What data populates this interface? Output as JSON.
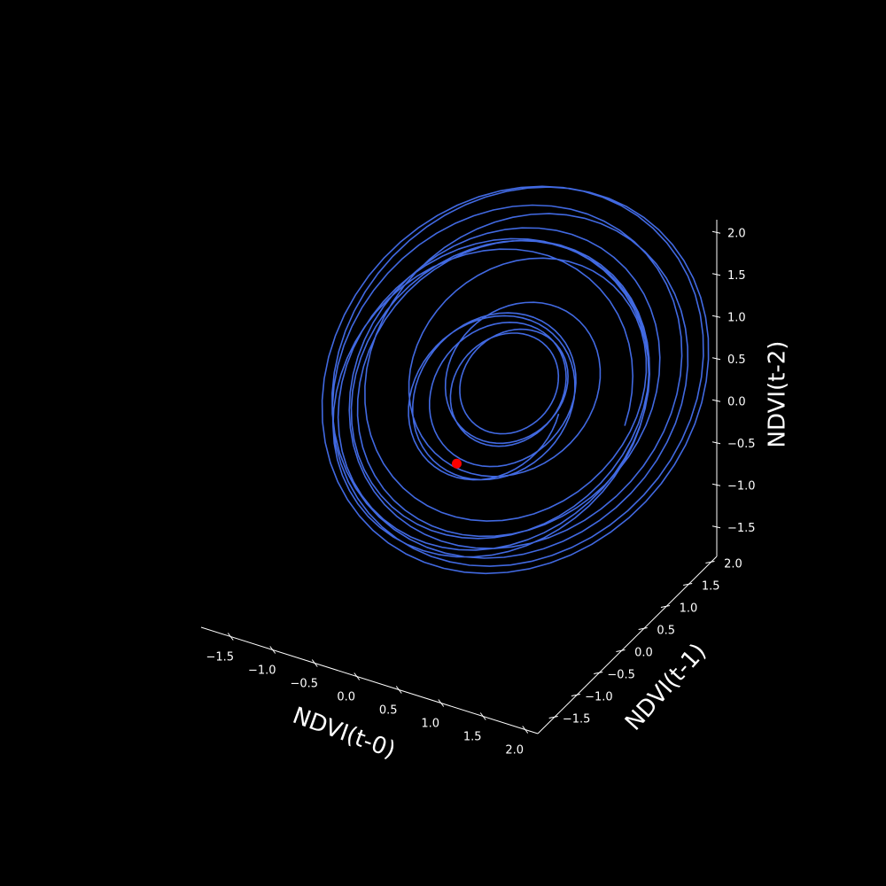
{
  "chart_data": {
    "type": "line",
    "projection": "3d",
    "xlabel": "NDVI(t-0)",
    "ylabel": "NDVI(t-1)",
    "zlabel": "NDVI(t-2)",
    "xticks": [
      "−1.5",
      "−1.0",
      "−0.5",
      "0.0",
      "0.5",
      "1.0",
      "1.5",
      "2.0"
    ],
    "yticks": [
      "−1.5",
      "−1.0",
      "−0.5",
      "0.0",
      "0.5",
      "1.0",
      "1.5",
      "2.0"
    ],
    "zticks": [
      "−1.5",
      "−1.0",
      "−0.5",
      "0.0",
      "0.5",
      "1.0",
      "1.5",
      "2.0"
    ],
    "xlim": [
      -1.85,
      2.15
    ],
    "ylim": [
      -1.85,
      2.15
    ],
    "zlim": [
      -1.85,
      2.15
    ],
    "grid": false,
    "series": [
      {
        "color": "#4169e1",
        "trajectory": "phase-space embedding of NDVI time series (sequence of damped/seasonal loops)",
        "loops": 16,
        "min": -1.6,
        "max": 1.9,
        "start_point": [
          0.15,
          0.1,
          -0.3
        ]
      }
    ],
    "marker": {
      "color": "#ff0000",
      "x": 0.15,
      "y": 0.1,
      "z": -0.3
    }
  },
  "colors": {
    "background": "#000000",
    "foreground": "#ffffff",
    "line": "#4169e1",
    "marker": "#ff0000"
  }
}
